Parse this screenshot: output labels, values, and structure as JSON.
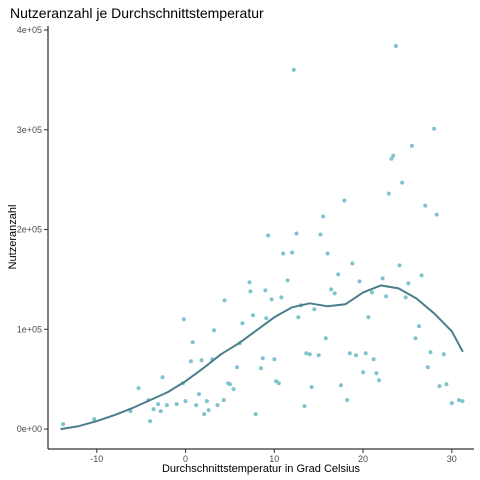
{
  "chart_data": {
    "type": "scatter",
    "title": "Nutzeranzahl je Durchschnittstemperatur",
    "xlabel": "Durchschnittstemperatur in Grad Celsius",
    "ylabel": "Nutzeranzahl",
    "xlim": [
      -15.5,
      32.5
    ],
    "ylim": [
      -20000,
      404000
    ],
    "x_ticks": [
      -10,
      0,
      10,
      20,
      30
    ],
    "x_tick_labels": [
      "-10",
      "0",
      "10",
      "20",
      "30"
    ],
    "y_ticks": [
      0,
      100000,
      200000,
      300000,
      400000
    ],
    "y_tick_labels": [
      "0e+00",
      "1e+05",
      "2e+05",
      "3e+05",
      "4e+05"
    ],
    "grid": false,
    "point_color": "#7ec3cd",
    "smooth_color": "#4a7e88",
    "points": [
      [
        -13.8,
        5000
      ],
      [
        -10.3,
        10000
      ],
      [
        -6.2,
        18000
      ],
      [
        -5.3,
        41000
      ],
      [
        -4.2,
        29000
      ],
      [
        -4.0,
        8000
      ],
      [
        -3.6,
        20000
      ],
      [
        -3.1,
        25000
      ],
      [
        -2.8,
        18000
      ],
      [
        -2.6,
        52000
      ],
      [
        -2.1,
        24000
      ],
      [
        -1.0,
        25000
      ],
      [
        -0.3,
        46000
      ],
      [
        -0.2,
        110000
      ],
      [
        0.0,
        28000
      ],
      [
        0.6,
        68000
      ],
      [
        0.8,
        87000
      ],
      [
        1.2,
        24000
      ],
      [
        1.5,
        35000
      ],
      [
        1.8,
        69000
      ],
      [
        2.1,
        15000
      ],
      [
        2.4,
        28000
      ],
      [
        2.6,
        19000
      ],
      [
        3.0,
        70000
      ],
      [
        3.2,
        99000
      ],
      [
        3.6,
        24000
      ],
      [
        4.3,
        29000
      ],
      [
        4.4,
        129000
      ],
      [
        4.8,
        46000
      ],
      [
        5.0,
        45000
      ],
      [
        5.4,
        40000
      ],
      [
        5.8,
        62000
      ],
      [
        6.1,
        86000
      ],
      [
        6.4,
        106000
      ],
      [
        7.2,
        147000
      ],
      [
        7.3,
        138000
      ],
      [
        7.6,
        114000
      ],
      [
        7.9,
        15000
      ],
      [
        8.5,
        61000
      ],
      [
        8.7,
        71000
      ],
      [
        9.0,
        139000
      ],
      [
        9.1,
        111000
      ],
      [
        9.3,
        194000
      ],
      [
        9.7,
        130000
      ],
      [
        10.0,
        70000
      ],
      [
        10.2,
        48000
      ],
      [
        10.5,
        46000
      ],
      [
        10.8,
        132000
      ],
      [
        11.0,
        176000
      ],
      [
        11.5,
        149000
      ],
      [
        12.0,
        177000
      ],
      [
        12.2,
        360000
      ],
      [
        12.5,
        196000
      ],
      [
        12.7,
        112000
      ],
      [
        13.0,
        124000
      ],
      [
        13.4,
        23000
      ],
      [
        13.6,
        76000
      ],
      [
        14.0,
        75000
      ],
      [
        14.2,
        42000
      ],
      [
        14.5,
        120000
      ],
      [
        15.0,
        74000
      ],
      [
        15.2,
        195000
      ],
      [
        15.5,
        213000
      ],
      [
        15.8,
        91000
      ],
      [
        16.0,
        176000
      ],
      [
        16.4,
        140000
      ],
      [
        16.8,
        136000
      ],
      [
        17.2,
        155000
      ],
      [
        17.5,
        44000
      ],
      [
        17.9,
        229000
      ],
      [
        18.2,
        29000
      ],
      [
        18.5,
        76000
      ],
      [
        18.8,
        166000
      ],
      [
        19.2,
        74000
      ],
      [
        19.6,
        148000
      ],
      [
        20.0,
        57000
      ],
      [
        20.3,
        76000
      ],
      [
        20.6,
        112000
      ],
      [
        21.0,
        137000
      ],
      [
        21.2,
        70000
      ],
      [
        21.5,
        56000
      ],
      [
        21.8,
        49000
      ],
      [
        22.2,
        151000
      ],
      [
        22.6,
        133000
      ],
      [
        22.9,
        236000
      ],
      [
        23.2,
        271000
      ],
      [
        23.4,
        274000
      ],
      [
        23.7,
        384000
      ],
      [
        24.1,
        164000
      ],
      [
        24.4,
        247000
      ],
      [
        24.8,
        132000
      ],
      [
        25.1,
        146000
      ],
      [
        25.5,
        284000
      ],
      [
        25.9,
        91000
      ],
      [
        26.3,
        103000
      ],
      [
        26.6,
        154000
      ],
      [
        27.0,
        224000
      ],
      [
        27.3,
        62000
      ],
      [
        27.6,
        77000
      ],
      [
        28.0,
        301000
      ],
      [
        28.3,
        215000
      ],
      [
        28.6,
        43000
      ],
      [
        29.1,
        75000
      ],
      [
        29.4,
        45000
      ],
      [
        30.0,
        26000
      ],
      [
        30.8,
        29000
      ],
      [
        31.2,
        28000
      ]
    ],
    "smooth": [
      [
        -14,
        0
      ],
      [
        -12,
        3000
      ],
      [
        -10,
        8000
      ],
      [
        -8,
        14000
      ],
      [
        -6,
        21000
      ],
      [
        -4,
        29000
      ],
      [
        -2,
        37000
      ],
      [
        0,
        48000
      ],
      [
        2,
        61000
      ],
      [
        4,
        75000
      ],
      [
        6,
        86000
      ],
      [
        8,
        99000
      ],
      [
        10,
        112000
      ],
      [
        12,
        122000
      ],
      [
        14,
        126000
      ],
      [
        16,
        123000
      ],
      [
        18,
        125000
      ],
      [
        20,
        137000
      ],
      [
        22,
        144000
      ],
      [
        24,
        141000
      ],
      [
        26,
        131000
      ],
      [
        28,
        116000
      ],
      [
        30,
        98000
      ],
      [
        31.2,
        78000
      ]
    ]
  }
}
